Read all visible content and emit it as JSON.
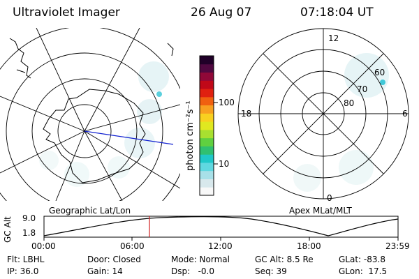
{
  "header": {
    "instrument": "Ultraviolet Imager",
    "date": "26 Aug 07",
    "time": "07:18:04 UT"
  },
  "colorbar": {
    "label": "photon cm⁻²s⁻¹",
    "ticks": [
      "100",
      "10"
    ],
    "colors": [
      "#f8f8f8",
      "#d8e8ec",
      "#a8e0e8",
      "#60d8e0",
      "#20c8c8",
      "#30c070",
      "#60d040",
      "#a8e030",
      "#e0e820",
      "#f8d020",
      "#f8a020",
      "#f06010",
      "#e02010",
      "#c00818",
      "#900838",
      "#500840",
      "#200028"
    ]
  },
  "left_map": {
    "caption": "Geographic Lat/Lon"
  },
  "right_map": {
    "caption": "Apex MLat/MLT",
    "mlt_labels": {
      "top": "12",
      "left": "18",
      "right": "6",
      "bottom": "0"
    },
    "lat_labels": [
      "60",
      "70",
      "80"
    ]
  },
  "altitude_panel": {
    "ylabel": "GC Alt",
    "yticks": [
      "9.0",
      "1.8"
    ],
    "xticks": [
      "00:00",
      "06:00",
      "12:00",
      "18:00",
      "23:59"
    ],
    "marker_color": "#d02020"
  },
  "status": {
    "filter": "Flt: LBHL",
    "ip": "IP: 36.0",
    "door": "Door: Closed",
    "gain": "Gain: 14",
    "mode": "Mode: Normal",
    "dsp": "Dsp:   -0.0",
    "gc_alt": "GC Alt: 8.5 Re",
    "seq": "Seq: 39",
    "glat": "GLat: -83.8",
    "glon": "GLon:  17.5"
  }
}
